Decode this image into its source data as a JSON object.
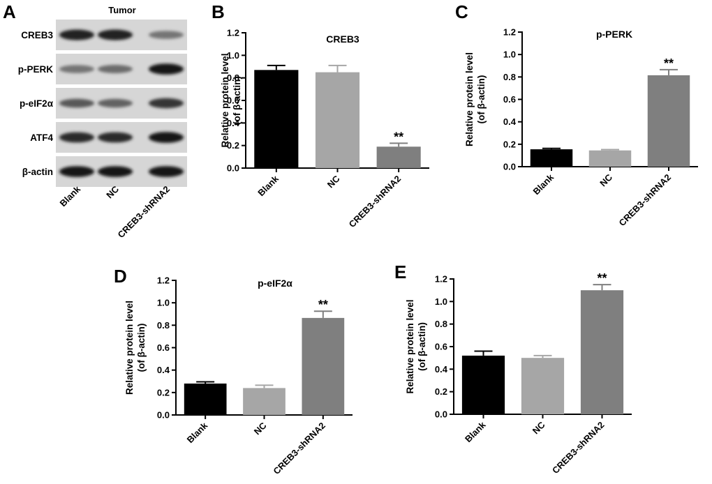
{
  "blot": {
    "letter": "A",
    "header": "Tumor",
    "rows": [
      {
        "label": "CREB3",
        "intensity": [
          0.9,
          0.9,
          0.45
        ]
      },
      {
        "label": "p-PERK",
        "intensity": [
          0.45,
          0.5,
          0.95
        ]
      },
      {
        "label": "p-eIF2α",
        "intensity": [
          0.6,
          0.55,
          0.8
        ]
      },
      {
        "label": "ATF4",
        "intensity": [
          0.85,
          0.85,
          0.95
        ]
      },
      {
        "label": "β-actin",
        "intensity": [
          0.95,
          0.95,
          0.95
        ]
      }
    ],
    "lanes": [
      "Blank",
      "NC",
      "CREB3-shRNA2"
    ]
  },
  "ylabel_line1": "Relative protein level",
  "ylabel_line2": "(of β-actin)",
  "colors": {
    "Blank": "#000000",
    "NC": "#a6a6a6",
    "CREB3-shRNA2": "#7f7f7f"
  },
  "chart_data": [
    {
      "type": "bar",
      "letter": "B",
      "title": "CREB3",
      "categories": [
        "Blank",
        "NC",
        "CREB3-shRNA2"
      ],
      "values": [
        0.87,
        0.85,
        0.19
      ],
      "errors": [
        0.04,
        0.06,
        0.03
      ],
      "significance": [
        "",
        "",
        "**"
      ],
      "ylim": [
        0,
        1.2
      ],
      "yticks": [
        "0.0",
        "0.2",
        "0.4",
        "0.6",
        "0.8",
        "1.0",
        "1.2"
      ]
    },
    {
      "type": "bar",
      "letter": "C",
      "title": "p-PERK",
      "categories": [
        "Blank",
        "NC",
        "CREB3-shRNA2"
      ],
      "values": [
        0.155,
        0.145,
        0.815
      ],
      "errors": [
        0.008,
        0.007,
        0.05
      ],
      "significance": [
        "",
        "",
        "**"
      ],
      "ylim": [
        0,
        1.2
      ],
      "yticks": [
        "0.0",
        "0.2",
        "0.4",
        "0.6",
        "0.8",
        "1.0",
        "1.2"
      ]
    },
    {
      "type": "bar",
      "letter": "D",
      "title": "p-eIF2α",
      "categories": [
        "Blank",
        "NC",
        "CREB3-shRNA2"
      ],
      "values": [
        0.28,
        0.24,
        0.865
      ],
      "errors": [
        0.015,
        0.025,
        0.06
      ],
      "significance": [
        "",
        "",
        "**"
      ],
      "ylim": [
        0,
        1.2
      ],
      "yticks": [
        "0.0",
        "0.2",
        "0.4",
        "0.6",
        "0.8",
        "1.0",
        "1.2"
      ]
    },
    {
      "type": "bar",
      "letter": "E",
      "title": "",
      "categories": [
        "Blank",
        "NC",
        "CREB3-shRNA2"
      ],
      "values": [
        0.52,
        0.5,
        1.1
      ],
      "errors": [
        0.04,
        0.02,
        0.05
      ],
      "significance": [
        "",
        "",
        "**"
      ],
      "ylim": [
        0,
        1.2
      ],
      "yticks": [
        "0.0",
        "0.2",
        "0.4",
        "0.6",
        "0.8",
        "1.0",
        "1.2"
      ]
    }
  ]
}
